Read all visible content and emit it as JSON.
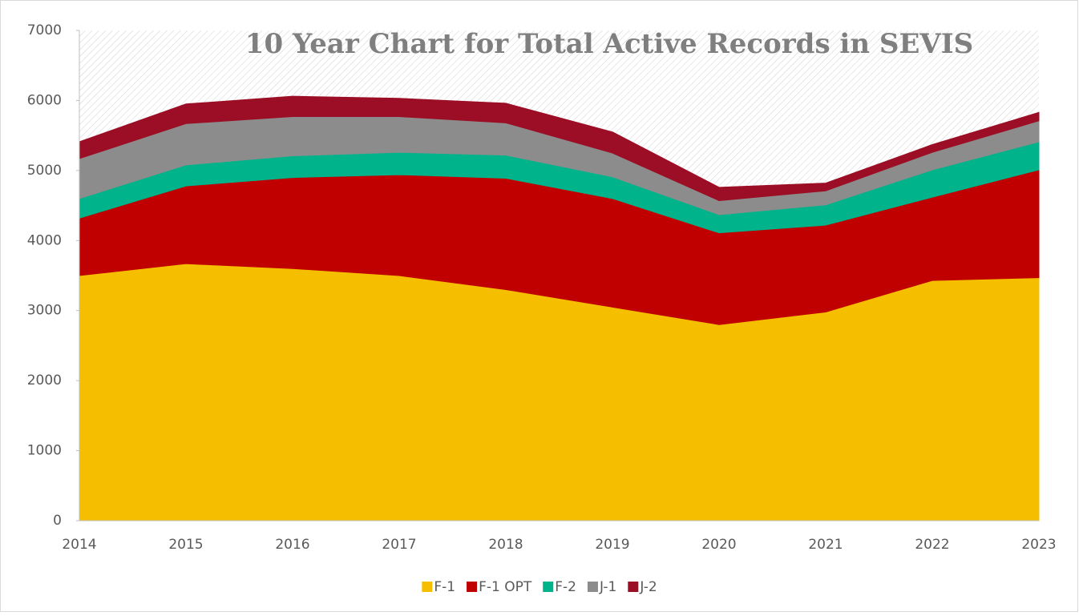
{
  "chart_data": {
    "type": "stacked_area",
    "title": "10 Year Chart for Total Active Records in SEVIS",
    "categories": [
      "2014",
      "2015",
      "2016",
      "2017",
      "2018",
      "2019",
      "2020",
      "2021",
      "2022",
      "2023"
    ],
    "series": [
      {
        "name": "F-1",
        "color": "#f5bf00",
        "values": [
          3500,
          3670,
          3600,
          3500,
          3300,
          3050,
          2800,
          2980,
          3430,
          3470
        ]
      },
      {
        "name": "F-1 OPT",
        "color": "#c00000",
        "values": [
          820,
          1110,
          1300,
          1440,
          1590,
          1550,
          1310,
          1240,
          1190,
          1540
        ]
      },
      {
        "name": "F-2",
        "color": "#00b38a",
        "values": [
          280,
          300,
          310,
          320,
          330,
          310,
          260,
          290,
          390,
          400
        ]
      },
      {
        "name": "J-1",
        "color": "#8c8c8c",
        "values": [
          570,
          590,
          560,
          510,
          460,
          340,
          200,
          200,
          250,
          300
        ]
      },
      {
        "name": "J-2",
        "color": "#9b0e25",
        "values": [
          240,
          280,
          290,
          260,
          280,
          300,
          190,
          110,
          110,
          120
        ]
      }
    ],
    "ylim": [
      0,
      7000
    ],
    "yticks": [
      0,
      1000,
      2000,
      3000,
      4000,
      5000,
      6000,
      7000
    ],
    "legend": "bottom"
  }
}
